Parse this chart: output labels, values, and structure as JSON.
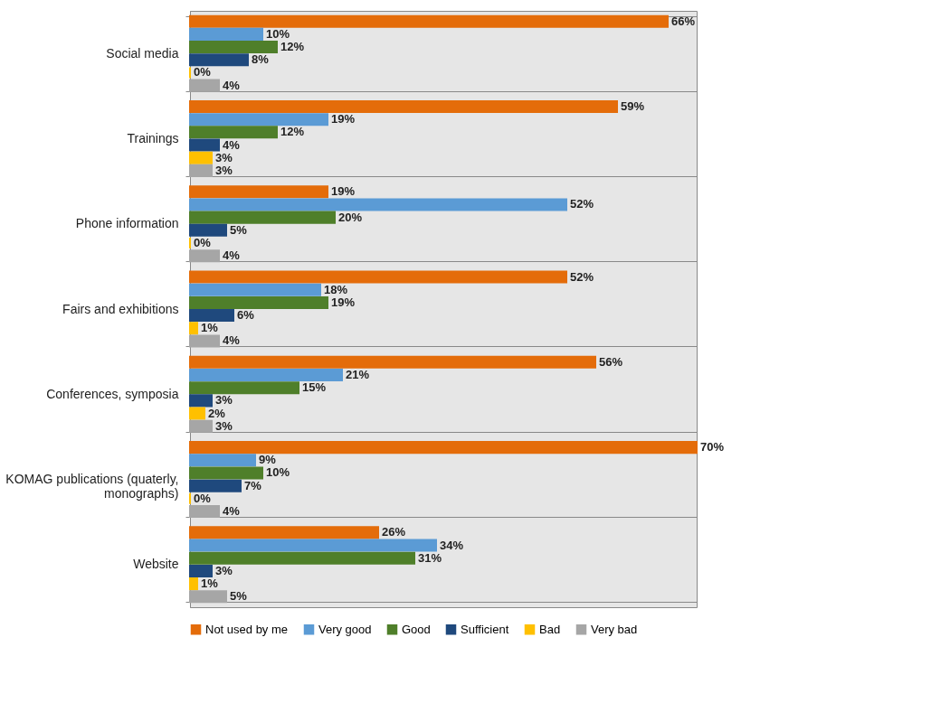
{
  "chart_data": {
    "type": "bar",
    "orientation": "horizontal",
    "categories": [
      "Social media",
      "Trainings",
      "Phone information",
      "Fairs and exhibitions",
      "Conferences, symposia",
      "KOMAG publications (quaterly, monographs)",
      "Website"
    ],
    "series": [
      {
        "name": "Not used by me",
        "color": "#e46c0a",
        "values": [
          66,
          59,
          19,
          52,
          56,
          70,
          26
        ],
        "value_labels": [
          "66%",
          "59%",
          "19%",
          "52%",
          "56%",
          "70%",
          "26%"
        ]
      },
      {
        "name": "Very good",
        "color": "#5b9bd5",
        "values": [
          10,
          19,
          52,
          18,
          21,
          9,
          34
        ],
        "value_labels": [
          "10%",
          "19%",
          "52%",
          "18%",
          "21%",
          "9%",
          "34%"
        ]
      },
      {
        "name": "Good",
        "color": "#4f7f2a",
        "values": [
          12,
          12,
          20,
          19,
          15,
          10,
          31
        ],
        "value_labels": [
          "12%",
          "12%",
          "20%",
          "19%",
          "15%",
          "10%",
          "31%"
        ]
      },
      {
        "name": "Sufficient",
        "color": "#1f497d",
        "values": [
          8,
          4,
          5,
          6,
          3,
          7,
          3
        ],
        "value_labels": [
          "8%",
          "4%",
          "5%",
          "6%",
          "3%",
          "7%",
          "3%"
        ]
      },
      {
        "name": "Bad",
        "color": "#ffc000",
        "values": [
          0,
          3,
          0,
          1,
          2,
          0,
          1
        ],
        "value_labels": [
          "0%",
          "3%",
          "0%",
          "1%",
          "2%",
          "0%",
          "1%"
        ]
      },
      {
        "name": "Very bad",
        "color": "#a6a6a6",
        "values": [
          4,
          3,
          4,
          4,
          3,
          4,
          5
        ],
        "value_labels": [
          "4%",
          "3%",
          "4%",
          "4%",
          "3%",
          "4%",
          "5%"
        ]
      }
    ],
    "grid": "y",
    "legend": "bottom"
  }
}
